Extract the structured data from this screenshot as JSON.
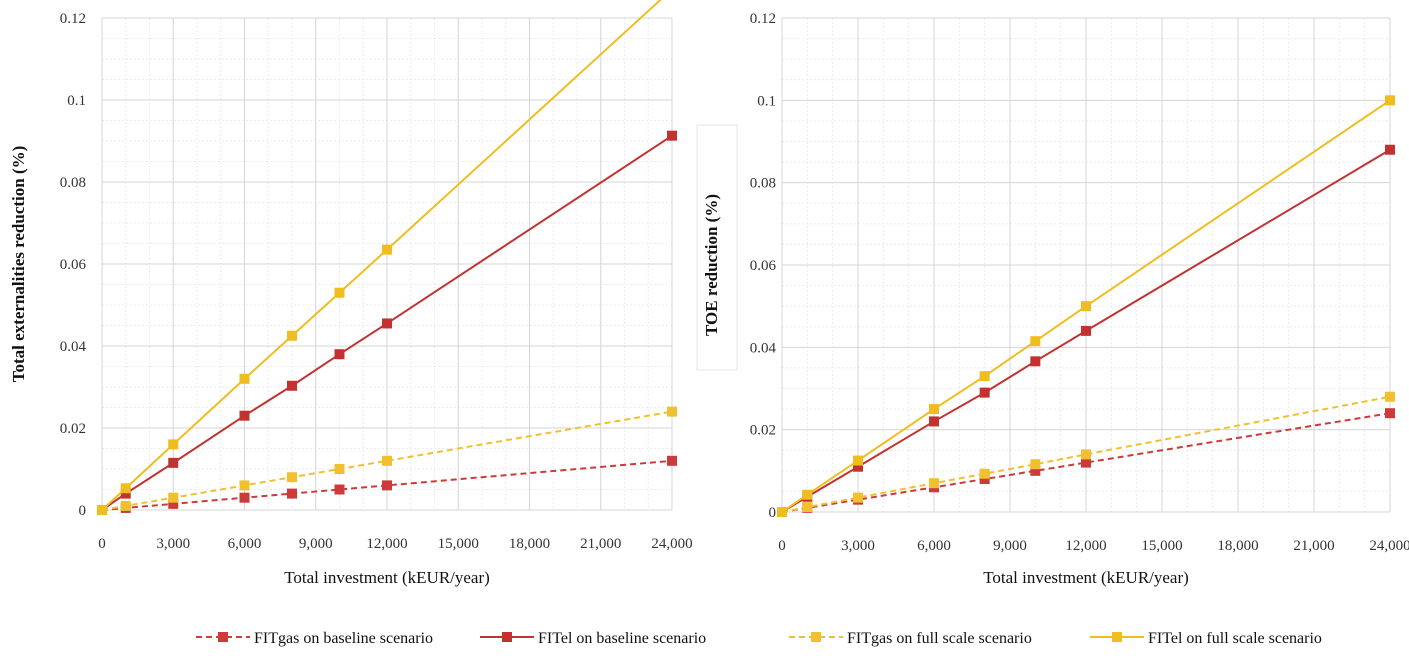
{
  "legend": {
    "series": [
      {
        "name": "FITgas on baseline scenario",
        "color": "#cc3a3a",
        "dash": true
      },
      {
        "name": "FITel on baseline scenario",
        "color": "#c33131",
        "dash": false
      },
      {
        "name": "FITgas on full scale scenario",
        "color": "#f0c030",
        "dash": true
      },
      {
        "name": "FITel on full scale scenario",
        "color": "#efbe1e",
        "dash": false
      }
    ]
  },
  "chart_data": [
    {
      "type": "line",
      "title": "",
      "xlabel": "Total investment (kEUR/year)",
      "ylabel": "Total externalities reduction (%)",
      "xlim": [
        0,
        24000
      ],
      "ylim": [
        0,
        0.12
      ],
      "x_ticks": [
        "0",
        "3,000",
        "6,000",
        "9,000",
        "12,000",
        "15,000",
        "18,000",
        "21,000",
        "24,000"
      ],
      "y_ticks": [
        "0",
        "0.02",
        "0.04",
        "0.06",
        "0.08",
        "0.1",
        "0.12"
      ],
      "grid": true,
      "x": [
        0,
        1000,
        3000,
        6000,
        8000,
        10000,
        12000,
        24000
      ],
      "series": [
        {
          "name": "FITgas on baseline scenario",
          "color": "#cc3a3a",
          "dash": true,
          "values": [
            0,
            0.0005,
            0.0015,
            0.003,
            0.004,
            0.005,
            0.006,
            0.012
          ]
        },
        {
          "name": "FITel on baseline scenario",
          "color": "#c33131",
          "dash": false,
          "values": [
            0,
            0.004,
            0.0115,
            0.023,
            0.0303,
            0.038,
            0.0455,
            0.0913
          ]
        },
        {
          "name": "FITgas on full scale scenario",
          "color": "#f0c030",
          "dash": true,
          "values": [
            0,
            0.001,
            0.003,
            0.006,
            0.008,
            0.01,
            0.012,
            0.024
          ]
        },
        {
          "name": "FITel on full scale scenario",
          "color": "#efbe1e",
          "dash": false,
          "values": [
            0,
            0.0053,
            0.016,
            0.032,
            0.0425,
            0.053,
            0.0635,
            0.127
          ]
        }
      ]
    },
    {
      "type": "line",
      "title": "",
      "xlabel": "Total investment (kEUR/year)",
      "ylabel": "TOE reduction (%)",
      "xlim": [
        0,
        24000
      ],
      "ylim": [
        0,
        0.12
      ],
      "x_ticks": [
        "0",
        "3,000",
        "6,000",
        "9,000",
        "12,000",
        "15,000",
        "18,000",
        "21,000",
        "24,000"
      ],
      "y_ticks": [
        "0",
        "0.02",
        "0.04",
        "0.06",
        "0.08",
        "0.1",
        "0.12"
      ],
      "grid": true,
      "x": [
        0,
        1000,
        3000,
        6000,
        8000,
        10000,
        12000,
        24000
      ],
      "series": [
        {
          "name": "FITgas on baseline scenario",
          "color": "#cc3a3a",
          "dash": true,
          "values": [
            0,
            0.001,
            0.003,
            0.006,
            0.008,
            0.01,
            0.012,
            0.024
          ]
        },
        {
          "name": "FITel on baseline scenario",
          "color": "#c33131",
          "dash": false,
          "values": [
            0,
            0.0037,
            0.011,
            0.022,
            0.029,
            0.0366,
            0.044,
            0.088
          ]
        },
        {
          "name": "FITgas on full scale scenario",
          "color": "#f0c030",
          "dash": true,
          "values": [
            0,
            0.0012,
            0.0035,
            0.007,
            0.0093,
            0.0116,
            0.014,
            0.028
          ]
        },
        {
          "name": "FITel on full scale scenario",
          "color": "#efbe1e",
          "dash": false,
          "values": [
            0,
            0.0042,
            0.0125,
            0.025,
            0.033,
            0.0415,
            0.05,
            0.1
          ]
        }
      ]
    }
  ]
}
